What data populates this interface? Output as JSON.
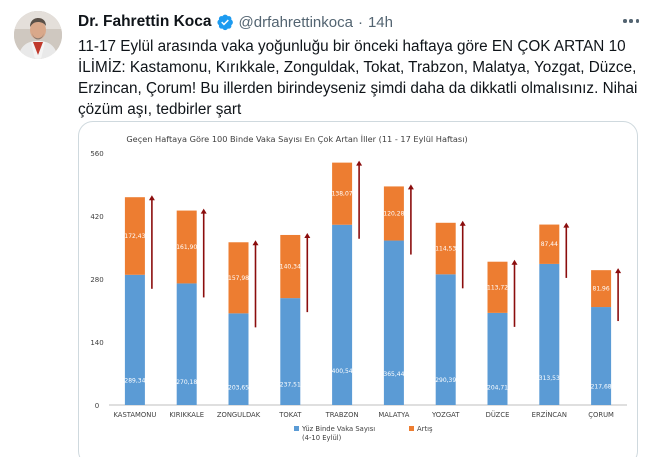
{
  "tweet": {
    "author_name": "Dr. Fahrettin Koca",
    "handle": "@drfahrettinkoca",
    "separator": "·",
    "time": "14h",
    "text": "11-17 Eylül arasında vaka yoğunluğu bir önceki haftaya göre EN ÇOK ARTAN 10 İLİMİZ: Kastamonu, Kırıkkale, Zonguldak, Tokat, Trabzon, Malatya, Yozgat, Düzce, Erzincan, Çorum! Bu illerden birindeyseniz şimdi daha da dikkatli olmalısınız. Nihai çözüm aşı, tedbirler şart",
    "icons": [
      "verified-badge-icon",
      "more-options-icon"
    ]
  },
  "colors": {
    "blue": "#5b9bd5",
    "orange": "#ed7d31",
    "arrow": "#8b0d0d",
    "verified": "#1d9bf0"
  },
  "chart_data": {
    "type": "bar",
    "stacked": true,
    "title": "Geçen Haftaya Göre 100 Binde Vaka Sayısı En Çok Artan İller (11 - 17 Eylül Haftası)",
    "categories": [
      "KASTAMONU",
      "KIRIKKALE",
      "ZONGULDAK",
      "TOKAT",
      "TRABZON",
      "MALATYA",
      "YOZGAT",
      "DÜZCE",
      "ERZİNCAN",
      "ÇORUM"
    ],
    "series": [
      {
        "name": "Yüz Binde Vaka Sayısı (4-10 Eylül)",
        "values": [
          289.34,
          270.18,
          203.65,
          237.51,
          400.54,
          365.44,
          290.39,
          204.71,
          313.53,
          217.68
        ],
        "labels": [
          "289,34",
          "270,18",
          "203,65",
          "237,51",
          "400,54",
          "365,44",
          "290,39",
          "204,71",
          "313,53",
          "217,68"
        ]
      },
      {
        "name": "Artış",
        "values": [
          172.43,
          161.9,
          157.98,
          140.34,
          138.07,
          120.28,
          114.53,
          113.72,
          87.44,
          81.96
        ],
        "labels": [
          "172,43",
          "161,90",
          "157,98",
          "140,34",
          "138,07",
          "120,28",
          "114,53",
          "113,72",
          "87,44",
          "81,96"
        ]
      }
    ],
    "ylim": [
      0,
      560
    ],
    "yticks": [
      0,
      140,
      280,
      420,
      560
    ],
    "ytick_labels": [
      "0",
      "140",
      "280",
      "420",
      "560"
    ],
    "grid": false,
    "legend": "bottom"
  }
}
